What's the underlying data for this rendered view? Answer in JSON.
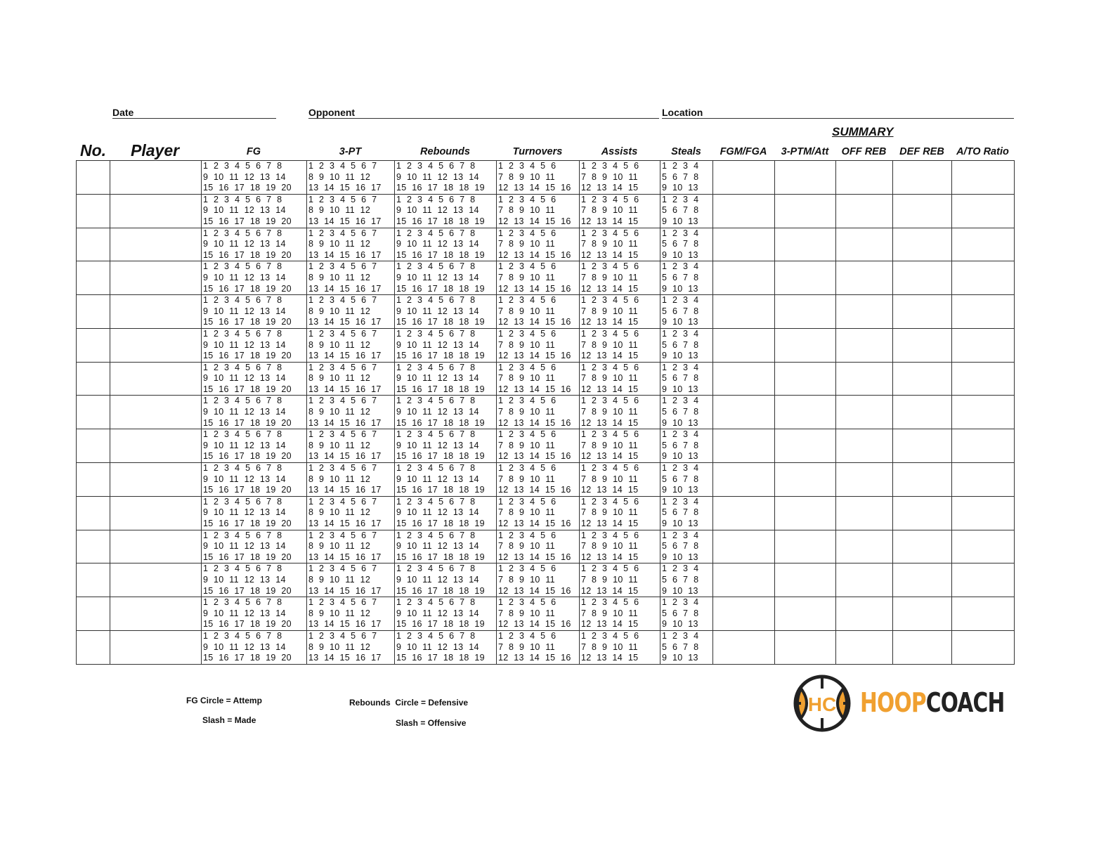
{
  "header": {
    "date_label": "Date",
    "opponent_label": "Opponent",
    "location_label": "Location",
    "summary_label": "SUMMARY"
  },
  "columns": {
    "no": "No.",
    "player": "Player",
    "fg": "FG",
    "three_pt": "3-PT",
    "rebounds": "Rebounds",
    "turnovers": "Turnovers",
    "assists": "Assists",
    "steals": "Steals",
    "fgm_fga": "FGM/FGA",
    "three_ptm_att": "3-PTM/Att",
    "off_reb": "OFF REB",
    "def_reb": "DEF REB",
    "ato_ratio": "A/TO Ratio"
  },
  "row_count": 15,
  "tally": {
    "fg": [
      "1 2 3 4 5 6 7 8",
      "9 10 11 12 13 14",
      "15 16 17 18 19 20"
    ],
    "three_pt": [
      "1 2 3 4 5 6 7",
      "8 9 10 11 12",
      "13 14 15 16 17"
    ],
    "rebounds": [
      "1 2 3 4 5 6 7 8",
      "9 10 11 12 13 14",
      "15 16 17 18 18 19"
    ],
    "turnovers": [
      "1 2 3 4 5 6",
      "7 8 9 10 11",
      "12 13 14 15 16"
    ],
    "assists": [
      "1 2 3 4 5 6",
      "7 8 9 10 11",
      "12 13 14 15"
    ],
    "steals": [
      "1 2 3 4",
      "5 6 7 8",
      "9 10 13"
    ]
  },
  "notes": {
    "fg_circle": "FG Circle = Attemp",
    "fg_slash": "Slash = Made",
    "reb_circle": "Rebounds  Circle = Defensive",
    "reb_slash": "Slash = Offensive"
  },
  "logo": {
    "initials": "HC",
    "text_orange": "HOOP",
    "text_dark": "COACH",
    "orange": "#F0A030",
    "dark": "#222222"
  }
}
